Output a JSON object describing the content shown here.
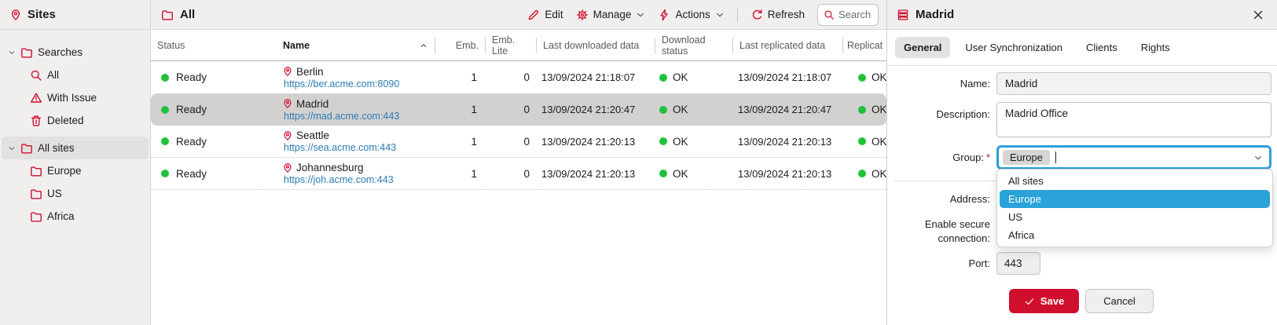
{
  "colors": {
    "accent": "#d00f2e",
    "green": "#22c13c",
    "link": "#2b7bb5",
    "selection_blue": "#29a3d8",
    "focus_blue": "#2ba1d8"
  },
  "sidebar": {
    "title": "Sites",
    "title_icon": "pin-icon",
    "groups": [
      {
        "label": "Searches",
        "icon": "folder-icon",
        "expanded": true,
        "selected": false,
        "children": [
          {
            "label": "All",
            "icon": "search-icon"
          },
          {
            "label": "With Issue",
            "icon": "warning-icon"
          },
          {
            "label": "Deleted",
            "icon": "trash-icon"
          }
        ]
      },
      {
        "label": "All sites",
        "icon": "folder-icon",
        "expanded": true,
        "selected": true,
        "children": [
          {
            "label": "Europe",
            "icon": "folder-icon"
          },
          {
            "label": "US",
            "icon": "folder-icon"
          },
          {
            "label": "Africa",
            "icon": "folder-icon"
          }
        ]
      }
    ]
  },
  "list_panel": {
    "title": "All",
    "title_icon": "folder-icon",
    "toolbar": {
      "edit": "Edit",
      "manage": "Manage",
      "actions": "Actions",
      "refresh": "Refresh",
      "search_placeholder": "Search"
    },
    "table": {
      "columns": [
        "Status",
        "Name",
        "Emb.",
        "Emb. Lite",
        "Last downloaded data",
        "Download status",
        "Last replicated data",
        "Replicat"
      ],
      "sort_column": "Name",
      "sort_direction": "ascending",
      "rows": [
        {
          "status": "Ready",
          "name": "Berlin",
          "url": "https://ber.acme.com:8090",
          "emb": "1",
          "emb_lite": "0",
          "last_downloaded": "13/09/2024 21:18:07",
          "download_status": "OK",
          "last_replicated": "13/09/2024 21:18:07",
          "replication_status": "OK",
          "selected": false
        },
        {
          "status": "Ready",
          "name": "Madrid",
          "url": "https://mad.acme.com:443",
          "emb": "1",
          "emb_lite": "0",
          "last_downloaded": "13/09/2024 21:20:47",
          "download_status": "OK",
          "last_replicated": "13/09/2024 21:20:47",
          "replication_status": "OK",
          "selected": true
        },
        {
          "status": "Ready",
          "name": "Seattle",
          "url": "https://sea.acme.com:443",
          "emb": "1",
          "emb_lite": "0",
          "last_downloaded": "13/09/2024 21:20:13",
          "download_status": "OK",
          "last_replicated": "13/09/2024 21:20:13",
          "replication_status": "OK",
          "selected": false
        },
        {
          "status": "Ready",
          "name": "Johannesburg",
          "url": "https://joh.acme.com:443",
          "emb": "1",
          "emb_lite": "0",
          "last_downloaded": "13/09/2024 21:20:13",
          "download_status": "OK",
          "last_replicated": "13/09/2024 21:20:13",
          "replication_status": "OK",
          "selected": false
        }
      ]
    }
  },
  "detail_panel": {
    "title": "Madrid",
    "title_icon": "server-icon",
    "tabs": [
      {
        "label": "General",
        "selected": true
      },
      {
        "label": "User Synchronization",
        "selected": false
      },
      {
        "label": "Clients",
        "selected": false
      },
      {
        "label": "Rights",
        "selected": false
      }
    ],
    "form": {
      "name_label": "Name:",
      "name_value": "Madrid",
      "description_label": "Description:",
      "description_value": "Madrid Office",
      "group_label": "Group:",
      "group_required": "*",
      "group_value": "Europe",
      "address_label": "Address:",
      "secure_label_line1": "Enable secure",
      "secure_label_line2": "connection:",
      "port_label": "Port:",
      "port_value": "443",
      "save": "Save",
      "cancel": "Cancel"
    },
    "group_dropdown": {
      "items": [
        {
          "label": "All sites",
          "selected": false
        },
        {
          "label": "Europe",
          "selected": true
        },
        {
          "label": "US",
          "selected": false
        },
        {
          "label": "Africa",
          "selected": false
        }
      ]
    }
  }
}
